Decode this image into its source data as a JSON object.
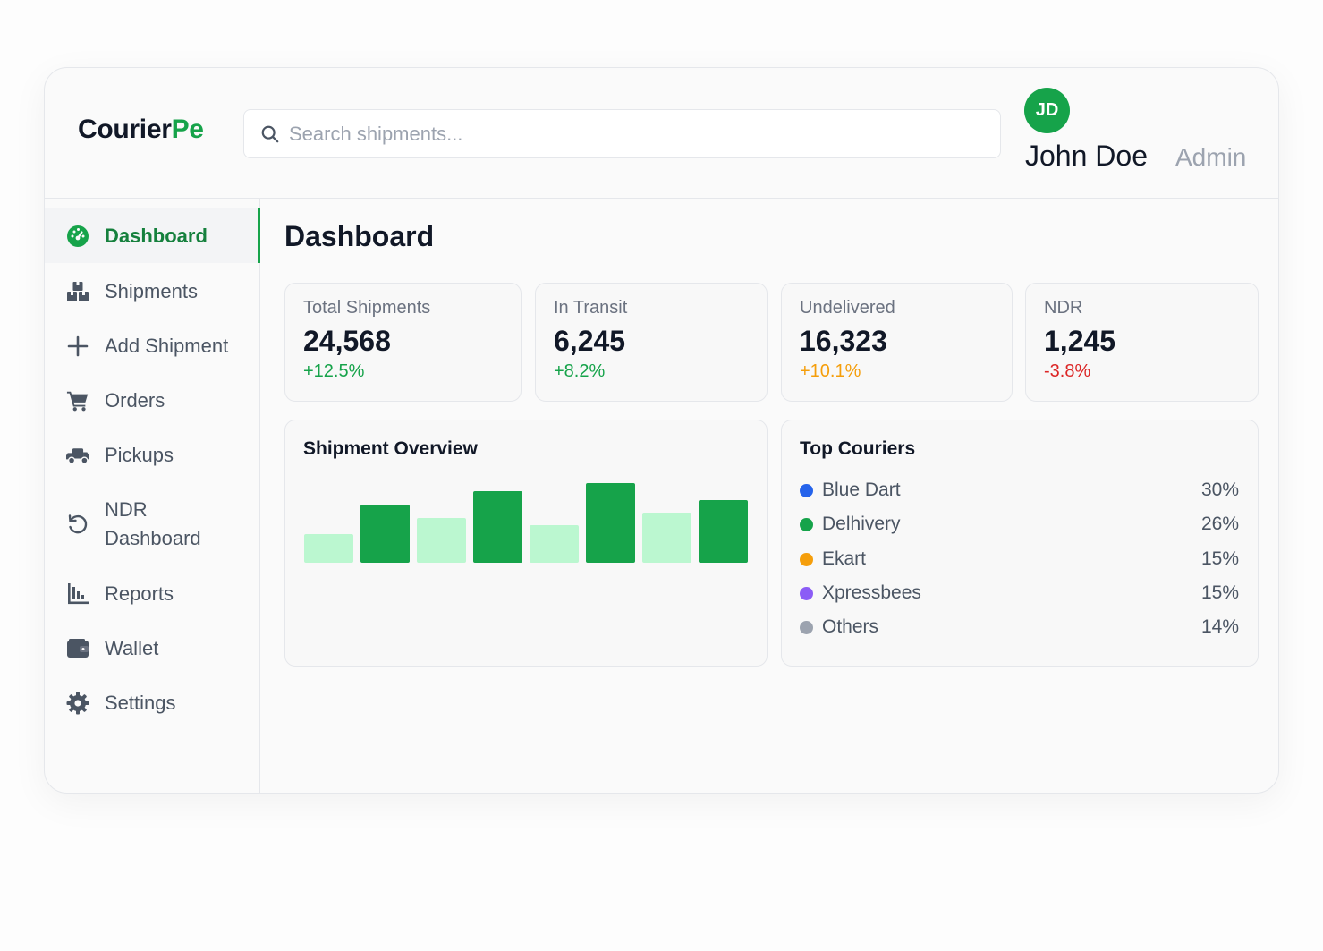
{
  "brand": {
    "part1": "Courier",
    "part2": "Pe"
  },
  "search": {
    "placeholder": "Search shipments..."
  },
  "user": {
    "initials": "JD",
    "name": "John Doe",
    "role": "Admin"
  },
  "sidebar": {
    "items": [
      {
        "label": "Dashboard",
        "icon": "dashboard-icon",
        "active": true
      },
      {
        "label": "Shipments",
        "icon": "boxes-icon"
      },
      {
        "label": "Add Shipment",
        "icon": "plus-icon"
      },
      {
        "label": "Orders",
        "icon": "cart-icon"
      },
      {
        "label": "Pickups",
        "icon": "truck-icon"
      },
      {
        "label": "NDR\nDashboard",
        "icon": "undo-icon"
      },
      {
        "label": "Reports",
        "icon": "bar-chart-icon"
      },
      {
        "label": "Wallet",
        "icon": "wallet-icon"
      },
      {
        "label": "Settings",
        "icon": "gear-icon"
      }
    ]
  },
  "main": {
    "title": "Dashboard",
    "stats": [
      {
        "label": "Total Shipments",
        "value": "24,568",
        "change": "+12.5%",
        "change_color": "#16a34a"
      },
      {
        "label": "In Transit",
        "value": "6,245",
        "change": "+8.2%",
        "change_color": "#16a34a"
      },
      {
        "label": "Undelivered",
        "value": "16,323",
        "change": "+10.1%",
        "change_color": "#f59e0b"
      },
      {
        "label": "NDR",
        "value": "1,245",
        "change": "-3.8%",
        "change_color": "#dc2626"
      }
    ],
    "overview": {
      "title": "Shipment Overview"
    },
    "couriers": {
      "title": "Top Couriers",
      "items": [
        {
          "name": "Blue Dart",
          "pct": "30%",
          "color": "#2563eb"
        },
        {
          "name": "Delhivery",
          "pct": "26%",
          "color": "#16a34a"
        },
        {
          "name": "Ekart",
          "pct": "15%",
          "color": "#f59e0b"
        },
        {
          "name": "Xpressbees",
          "pct": "15%",
          "color": "#8b5cf6"
        },
        {
          "name": "Others",
          "pct": "14%",
          "color": "#9ca3af"
        }
      ]
    }
  },
  "chart_data": {
    "type": "bar",
    "title": "Shipment Overview",
    "categories": [
      "",
      "",
      "",
      "",
      "",
      "",
      "",
      ""
    ],
    "values": [
      32,
      65,
      50,
      80,
      42,
      89,
      56,
      70
    ],
    "colors": [
      "#bbf7d0",
      "#16a34a",
      "#bbf7d0",
      "#16a34a",
      "#bbf7d0",
      "#16a34a",
      "#bbf7d0",
      "#16a34a"
    ],
    "ylim": [
      0,
      100
    ],
    "grid": false,
    "axes_visible": false
  }
}
